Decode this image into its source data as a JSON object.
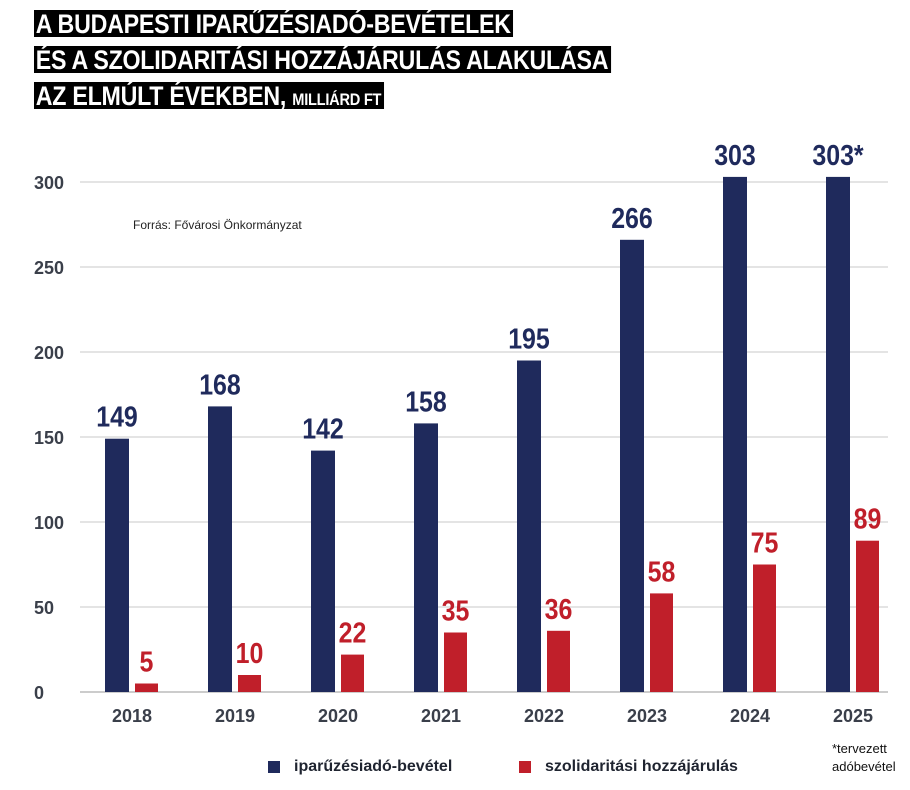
{
  "title": {
    "line1": "A BUDAPESTI IPARŰZÉSIADÓ-BEVÉTELEK",
    "line2": "ÉS A SZOLIDARITÁSI HOZZÁJÁRULÁS ALAKULÁSA",
    "line3": "AZ ELMÚLT ÉVEKBEN,",
    "unit": "MILLIÁRD FT"
  },
  "source": "Forrás: Fővárosi Önkormányzat",
  "footnote": {
    "line1": "*tervezett",
    "line2": "adóbevétel"
  },
  "colors": {
    "series1": "#1f2a5c",
    "series2": "#c01f2a",
    "grid": "#c8c8c8",
    "axis_text": "#3a3f4a"
  },
  "chart_data": {
    "type": "bar",
    "categories": [
      "2018",
      "2019",
      "2020",
      "2021",
      "2022",
      "2023",
      "2024",
      "2025"
    ],
    "series": [
      {
        "name": "iparűzésiadó-bevétel",
        "values": [
          149,
          168,
          142,
          158,
          195,
          266,
          303,
          303
        ],
        "labels": [
          "149",
          "168",
          "142",
          "158",
          "195",
          "266",
          "303",
          "303*"
        ]
      },
      {
        "name": "szolidaritási hozzájárulás",
        "values": [
          5,
          10,
          22,
          35,
          36,
          58,
          75,
          89
        ],
        "labels": [
          "5",
          "10",
          "22",
          "35",
          "36",
          "58",
          "75",
          "89"
        ]
      }
    ],
    "y_ticks": [
      "0",
      "50",
      "100",
      "150",
      "200",
      "250",
      "300"
    ],
    "ylim": [
      0,
      300
    ],
    "grid": true,
    "legend_position": "bottom"
  }
}
